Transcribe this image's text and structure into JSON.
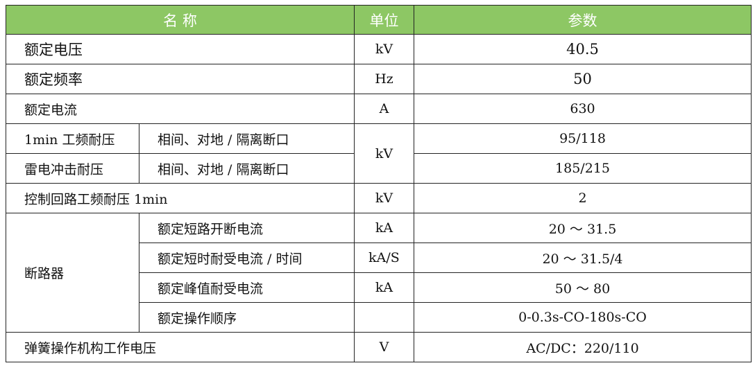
{
  "header": {
    "name": "名 称",
    "unit": "单位",
    "param": "参数"
  },
  "rows": {
    "rated_voltage": {
      "name": "额定电压",
      "unit": "kV",
      "value": "40.5"
    },
    "rated_frequency": {
      "name": "额定频率",
      "unit": "Hz",
      "value": "50"
    },
    "rated_current": {
      "name": "额定电流",
      "unit": "A",
      "value": "630"
    },
    "power_freq_withstand": {
      "name": "1min 工频耐压",
      "sub": "相间、对地 / 隔离断口",
      "value": "95/118"
    },
    "lightning_withstand": {
      "name": "雷电冲击耐压",
      "sub": "相间、对地 / 隔离断口",
      "value": "185/215"
    },
    "withstand_unit": "kV",
    "control_circuit": {
      "name": "控制回路工频耐压 1min",
      "unit": "kV",
      "value": "2"
    },
    "breaker": {
      "name": "断路器",
      "items": [
        {
          "sub": "额定短路开断电流",
          "unit": "kA",
          "value": "20 ～ 31.5"
        },
        {
          "sub": "额定短时耐受电流 / 时间",
          "unit": "kA/S",
          "value": "20 ～ 31.5/4"
        },
        {
          "sub": "额定峰值耐受电流",
          "unit": "kA",
          "value": "50 ～ 80"
        },
        {
          "sub": "额定操作顺序",
          "unit": "",
          "value": "0-0.3s-CO-180s-CO"
        }
      ]
    },
    "spring_mechanism": {
      "name": "弹簧操作机构工作电压",
      "unit": "V",
      "value": "AC/DC：220/110"
    }
  },
  "colors": {
    "header_bg": "#8dc764",
    "header_text": "#ffffff",
    "border": "#222222"
  }
}
